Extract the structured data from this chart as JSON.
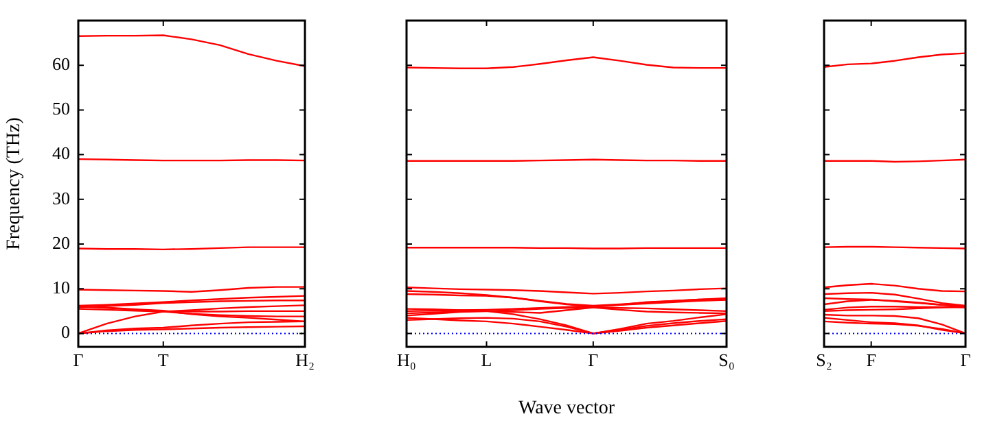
{
  "chart_data": [
    {
      "type": "line",
      "ylabel": "Frequency (THz)",
      "categories": [
        "Γ",
        null,
        null,
        "T",
        null,
        null,
        null,
        null,
        "H₂"
      ],
      "ylim": [
        -3,
        70
      ],
      "yticks": [
        0,
        10,
        20,
        30,
        40,
        50,
        60
      ],
      "tick_labels": "xy",
      "grid": false,
      "legend": false,
      "marker": "none",
      "line_style": "solid",
      "ref_lines": [
        {
          "axis": "y",
          "value": 0,
          "color": "#0000ff",
          "line_style": "dotted"
        }
      ],
      "series": [
        {
          "color": "#ff0000",
          "values": [
            66.5,
            66.6,
            66.6,
            66.7,
            65.8,
            64.5,
            62.5,
            61,
            59.8
          ]
        },
        {
          "color": "#ff0000",
          "values": [
            39,
            38.9,
            38.8,
            38.7,
            38.7,
            38.7,
            38.8,
            38.8,
            38.7
          ]
        },
        {
          "color": "#ff0000",
          "values": [
            19,
            18.9,
            18.9,
            18.8,
            18.9,
            19.1,
            19.3,
            19.3,
            19.3
          ]
        },
        {
          "color": "#ff0000",
          "values": [
            9.8,
            9.7,
            9.6,
            9.5,
            9.3,
            9.7,
            10.2,
            10.4,
            10.4
          ]
        },
        {
          "color": "#ff0000",
          "values": [
            6.2,
            6.4,
            6.7,
            7,
            7.4,
            7.7,
            8,
            8.2,
            8.4
          ]
        },
        {
          "color": "#ff0000",
          "values": [
            5.8,
            6.1,
            6.4,
            6.8,
            7,
            7.2,
            7.3,
            7.4,
            7.4
          ]
        },
        {
          "color": "#ff0000",
          "values": [
            6,
            5.7,
            5.3,
            5,
            4.9,
            4.9,
            5,
            5,
            5
          ]
        },
        {
          "color": "#ff0000",
          "values": [
            0,
            2.2,
            3.8,
            4.9,
            4.4,
            4.1,
            3.9,
            3.8,
            3.8
          ]
        },
        {
          "color": "#ff0000",
          "values": [
            0,
            0.7,
            1.1,
            1.3,
            1.8,
            2.2,
            2.5,
            2.6,
            2.7
          ]
        },
        {
          "color": "#ff0000",
          "values": [
            0,
            0.5,
            0.8,
            0.9,
            1.1,
            1.3,
            1.4,
            1.5,
            1.6
          ]
        },
        {
          "color": "#ff0000",
          "values": [
            5.5,
            5.3,
            5.1,
            4.9,
            5.2,
            5.6,
            5.9,
            6.1,
            6.3
          ]
        },
        {
          "color": "#ff0000",
          "values": [
            6.1,
            5.8,
            5.4,
            5.1,
            4.3,
            3.8,
            3.5,
            3.1,
            2.7
          ]
        }
      ]
    },
    {
      "type": "line",
      "xlabel": "Wave vector",
      "categories": [
        "H₀",
        null,
        null,
        "L",
        null,
        null,
        null,
        "Γ",
        null,
        null,
        null,
        null,
        "S₀"
      ],
      "ylim": [
        -3,
        70
      ],
      "yticks": [
        0,
        10,
        20,
        30,
        40,
        50,
        60
      ],
      "tick_labels": "x",
      "grid": false,
      "legend": false,
      "marker": "none",
      "line_style": "solid",
      "ref_lines": [
        {
          "axis": "y",
          "value": 0,
          "color": "#0000ff",
          "line_style": "dotted"
        }
      ],
      "series": [
        {
          "color": "#ff0000",
          "values": [
            59.5,
            59.4,
            59.3,
            59.3,
            59.6,
            60.3,
            61.1,
            61.8,
            61,
            60.1,
            59.5,
            59.4,
            59.4
          ]
        },
        {
          "color": "#ff0000",
          "values": [
            38.6,
            38.6,
            38.6,
            38.6,
            38.6,
            38.7,
            38.8,
            38.9,
            38.8,
            38.7,
            38.7,
            38.6,
            38.6
          ]
        },
        {
          "color": "#ff0000",
          "values": [
            19.2,
            19.2,
            19.2,
            19.2,
            19.2,
            19.1,
            19.1,
            19,
            19,
            19.1,
            19.1,
            19.1,
            19.1
          ]
        },
        {
          "color": "#ff0000",
          "values": [
            10.3,
            10.1,
            9.9,
            9.8,
            9.7,
            9.5,
            9.2,
            8.9,
            9.1,
            9.4,
            9.6,
            9.9,
            10.1
          ]
        },
        {
          "color": "#ff0000",
          "values": [
            8.8,
            8.7,
            8.5,
            8.4,
            8,
            7.3,
            6.6,
            6.2,
            6.5,
            6.9,
            7.3,
            7.6,
            7.9
          ]
        },
        {
          "color": "#ff0000",
          "values": [
            9.5,
            9.3,
            9,
            8.6,
            8,
            7.2,
            6.5,
            6,
            6.4,
            7,
            7.3,
            7.6,
            7.8
          ]
        },
        {
          "color": "#ff0000",
          "values": [
            5,
            5.1,
            5.2,
            5.3,
            5.5,
            5.7,
            5.9,
            6.1,
            6.4,
            6.7,
            7,
            7.3,
            7.5
          ]
        },
        {
          "color": "#ff0000",
          "values": [
            4,
            4.4,
            4.8,
            5,
            5.2,
            5.5,
            5.7,
            5.9,
            5.7,
            5.6,
            5.4,
            5.2,
            5
          ]
        },
        {
          "color": "#ff0000",
          "values": [
            3,
            3.2,
            3.4,
            3.5,
            3.3,
            2.7,
            1.5,
            0,
            1,
            2.2,
            2.8,
            3.6,
            4.3
          ]
        },
        {
          "color": "#ff0000",
          "values": [
            4.5,
            4.7,
            4.9,
            5,
            4.3,
            3.2,
            1.8,
            0,
            0.8,
            1.7,
            2.3,
            2.8,
            3.2
          ]
        },
        {
          "color": "#ff0000",
          "values": [
            3.5,
            3.2,
            2.9,
            2.7,
            2.2,
            1.5,
            0.8,
            0,
            0.6,
            1.3,
            1.8,
            2.3,
            2.8
          ]
        },
        {
          "color": "#ff0000",
          "values": [
            5.5,
            5.4,
            5.2,
            5,
            4.8,
            4.6,
            5.2,
            5.8,
            5.3,
            4.9,
            4.7,
            4.6,
            4.5
          ]
        }
      ]
    },
    {
      "type": "line",
      "categories": [
        "S₂",
        null,
        "F",
        null,
        null,
        null,
        "Γ"
      ],
      "ylim": [
        -3,
        70
      ],
      "yticks": [
        0,
        10,
        20,
        30,
        40,
        50,
        60
      ],
      "tick_labels": "x",
      "grid": false,
      "legend": false,
      "marker": "none",
      "line_style": "solid",
      "ref_lines": [
        {
          "axis": "y",
          "value": 0,
          "color": "#0000ff",
          "line_style": "dotted"
        }
      ],
      "series": [
        {
          "color": "#ff0000",
          "values": [
            59.6,
            60.2,
            60.4,
            61,
            61.8,
            62.4,
            62.7
          ]
        },
        {
          "color": "#ff0000",
          "values": [
            38.6,
            38.6,
            38.6,
            38.4,
            38.5,
            38.7,
            38.9
          ]
        },
        {
          "color": "#ff0000",
          "values": [
            19.3,
            19.4,
            19.4,
            19.3,
            19.2,
            19.1,
            19
          ]
        },
        {
          "color": "#ff0000",
          "values": [
            10.3,
            10.8,
            11.1,
            10.7,
            10,
            9.5,
            9.4
          ]
        },
        {
          "color": "#ff0000",
          "values": [
            8.8,
            9,
            9.1,
            8.7,
            7.8,
            6.8,
            6.2
          ]
        },
        {
          "color": "#ff0000",
          "values": [
            7.9,
            7.7,
            7.6,
            7.2,
            6.8,
            6.4,
            6
          ]
        },
        {
          "color": "#ff0000",
          "values": [
            5.3,
            5.8,
            6,
            6,
            5.9,
            5.9,
            5.8
          ]
        },
        {
          "color": "#ff0000",
          "values": [
            4.2,
            4,
            4,
            3.9,
            3.4,
            2,
            0
          ]
        },
        {
          "color": "#ff0000",
          "values": [
            2.7,
            2.4,
            2.2,
            2.1,
            1.7,
            1,
            0
          ]
        },
        {
          "color": "#ff0000",
          "values": [
            3.5,
            3,
            2.5,
            2.3,
            1.8,
            0.8,
            0
          ]
        },
        {
          "color": "#ff0000",
          "values": [
            5,
            5.2,
            5.3,
            5.4,
            5.6,
            5.8,
            6
          ]
        },
        {
          "color": "#ff0000",
          "values": [
            6.5,
            7.2,
            7.5,
            7.3,
            6.9,
            6.4,
            6.1
          ]
        }
      ]
    }
  ]
}
